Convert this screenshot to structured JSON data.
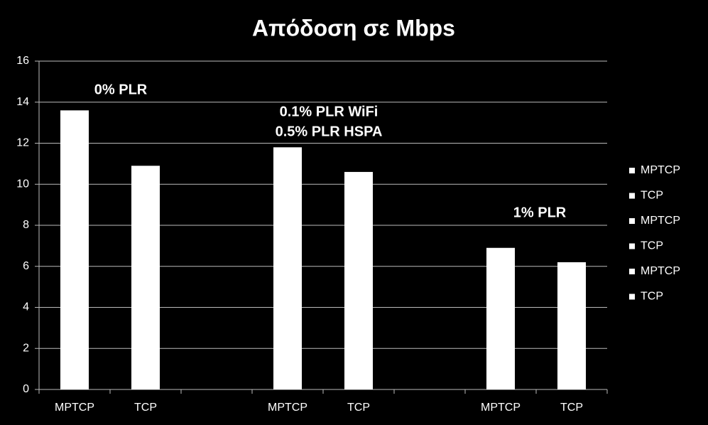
{
  "chart_data": {
    "type": "bar",
    "title": "Απόδοση σε Mbps",
    "categories": [
      "MPTCP",
      "TCP",
      null,
      "MPTCP",
      "TCP",
      null,
      "MPTCP",
      "TCP"
    ],
    "series": [
      {
        "name": "MPTCP",
        "color": "#ffffff",
        "values": [
          13.6,
          null,
          null,
          null,
          null,
          null,
          null,
          null
        ]
      },
      {
        "name": "TCP",
        "color": "#ffffff",
        "values": [
          null,
          10.9,
          null,
          null,
          null,
          null,
          null,
          null
        ]
      },
      {
        "name": "MPTCP",
        "color": "#ffffff",
        "values": [
          null,
          null,
          null,
          11.8,
          null,
          null,
          null,
          null
        ]
      },
      {
        "name": "TCP",
        "color": "#ffffff",
        "values": [
          null,
          null,
          null,
          null,
          10.6,
          null,
          null,
          null
        ]
      },
      {
        "name": "MPTCP",
        "color": "#ffffff",
        "values": [
          null,
          null,
          null,
          null,
          null,
          null,
          6.9,
          null
        ]
      },
      {
        "name": "TCP",
        "color": "#ffffff",
        "values": [
          null,
          null,
          null,
          null,
          null,
          null,
          null,
          6.2
        ]
      }
    ],
    "annotations": [
      "0%  PLR",
      "0.1%  PLR WiFi",
      "0.5%  PLR HSPA",
      "1%  PLR"
    ],
    "ylim": [
      0,
      16
    ],
    "yticks": [
      0,
      2,
      4,
      6,
      8,
      10,
      12,
      14,
      16
    ],
    "grid": true,
    "legend": "right"
  }
}
